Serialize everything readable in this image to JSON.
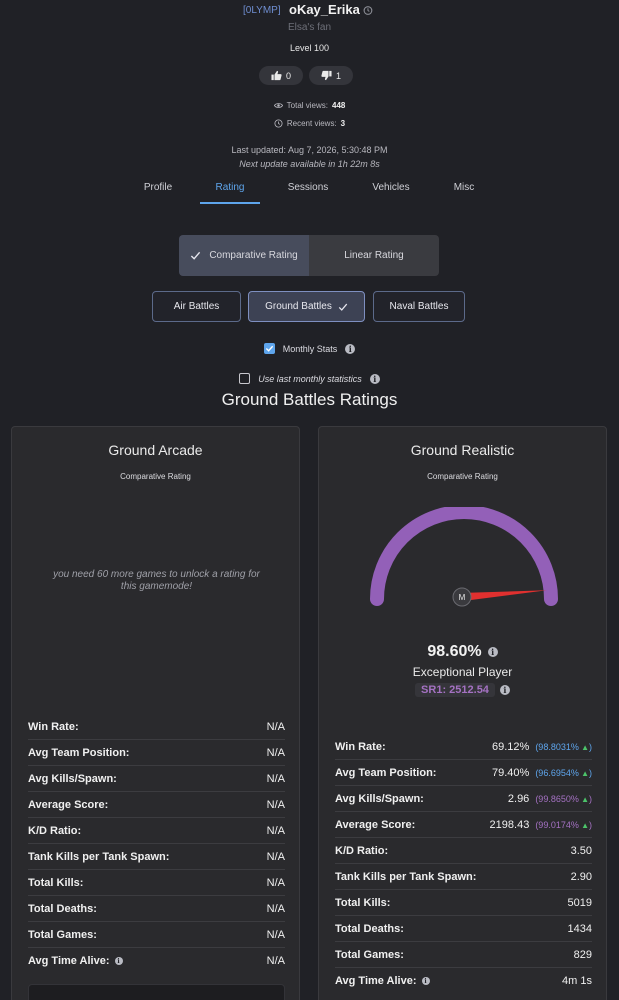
{
  "profile": {
    "clan": "[0LYMP]",
    "username": "oKay_Erika",
    "subtitle": "Elsa's fan",
    "level": "Level 100",
    "upvotes": "0",
    "downvotes": "1",
    "total_views_label": "Total views:",
    "total_views": "448",
    "recent_views_label": "Recent views:",
    "recent_views": "3",
    "last_updated": "Last updated: Aug 7, 2026, 5:30:48 PM",
    "next_update": "Next update available in 1h 22m 8s"
  },
  "tabs": [
    {
      "label": "Profile"
    },
    {
      "label": "Rating"
    },
    {
      "label": "Sessions"
    },
    {
      "label": "Vehicles"
    },
    {
      "label": "Misc"
    }
  ],
  "active_tab": "Rating",
  "rating_type": {
    "comparative": "Comparative Rating",
    "linear": "Linear Rating",
    "selected": "Comparative Rating"
  },
  "modes": {
    "air": "Air Battles",
    "ground": "Ground Battles",
    "naval": "Naval Battles",
    "selected": "Ground Battles"
  },
  "options": {
    "monthly_stats": "Monthly Stats",
    "monthly_stats_checked": true,
    "use_last_monthly": "Use last monthly statistics",
    "use_last_monthly_checked": false
  },
  "section_title": "Ground Battles Ratings",
  "arcade": {
    "title": "Ground Arcade",
    "subtitle": "Comparative Rating",
    "locked_message": "you need 60 more games to unlock a rating for this gamemode!",
    "stats": [
      {
        "label": "Win Rate:",
        "value": "N/A"
      },
      {
        "label": "Avg Team Position:",
        "value": "N/A"
      },
      {
        "label": "Avg Kills/Spawn:",
        "value": "N/A"
      },
      {
        "label": "Average Score:",
        "value": "N/A"
      },
      {
        "label": "K/D Ratio:",
        "value": "N/A"
      },
      {
        "label": "Tank Kills per Tank Spawn:",
        "value": "N/A"
      },
      {
        "label": "Total Kills:",
        "value": "N/A"
      },
      {
        "label": "Total Deaths:",
        "value": "N/A"
      },
      {
        "label": "Total Games:",
        "value": "N/A"
      },
      {
        "label": "Avg Time Alive:",
        "value": "N/A"
      }
    ]
  },
  "realistic": {
    "title": "Ground Realistic",
    "subtitle": "Comparative Rating",
    "gauge_marker": "M",
    "gauge_level": 0.986,
    "percent": "98.60%",
    "tier": "Exceptional Player",
    "sr": "SR1: 2512.54",
    "stats": [
      {
        "label": "Win Rate:",
        "value": "69.12%",
        "pctl": "(98.8031%",
        "color": "blue"
      },
      {
        "label": "Avg Team Position:",
        "value": "79.40%",
        "pctl": "(96.6954%",
        "color": "blue"
      },
      {
        "label": "Avg Kills/Spawn:",
        "value": "2.96",
        "pctl": "(99.8650%",
        "color": "purple"
      },
      {
        "label": "Average Score:",
        "value": "2198.43",
        "pctl": "(99.0174%",
        "color": "purple"
      },
      {
        "label": "K/D Ratio:",
        "value": "3.50",
        "pctl": ""
      },
      {
        "label": "Tank Kills per Tank Spawn:",
        "value": "2.90",
        "pctl": ""
      },
      {
        "label": "Total Kills:",
        "value": "5019",
        "pctl": ""
      },
      {
        "label": "Total Deaths:",
        "value": "1434",
        "pctl": ""
      },
      {
        "label": "Total Games:",
        "value": "829",
        "pctl": ""
      },
      {
        "label": "Avg Time Alive:",
        "value": "4m 1s",
        "pctl": ""
      }
    ]
  },
  "colors": {
    "accent": "#5ea5ec",
    "purple": "#a471c2",
    "gauge_arc": "#9360b8",
    "needle": "#e0302f",
    "up_arrow": "#4cc46a"
  }
}
